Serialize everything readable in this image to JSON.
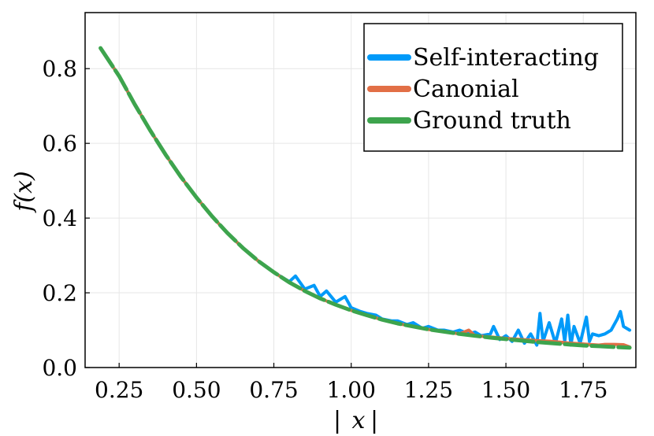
{
  "chart_data": {
    "type": "line",
    "title": "",
    "xlabel": "|x|",
    "ylabel": "f(x)",
    "xlim": [
      0.14,
      1.92
    ],
    "ylim": [
      0.0,
      0.95
    ],
    "xticks": [
      0.25,
      0.5,
      0.75,
      1.0,
      1.25,
      1.5,
      1.75
    ],
    "xtick_labels": [
      "0.25",
      "0.50",
      "0.75",
      "1.00",
      "1.25",
      "1.50",
      "1.75"
    ],
    "yticks": [
      0.0,
      0.2,
      0.4,
      0.6,
      0.8
    ],
    "ytick_labels": [
      "0.0",
      "0.2",
      "0.4",
      "0.6",
      "0.8"
    ],
    "grid": true,
    "legend_position": "top-right",
    "series": [
      {
        "name": "Self-interacting",
        "color": "#009af9",
        "x": [
          0.19,
          0.25,
          0.3,
          0.35,
          0.4,
          0.45,
          0.5,
          0.55,
          0.6,
          0.65,
          0.7,
          0.75,
          0.8,
          0.82,
          0.85,
          0.88,
          0.9,
          0.92,
          0.95,
          0.98,
          1.0,
          1.03,
          1.05,
          1.08,
          1.1,
          1.13,
          1.15,
          1.18,
          1.2,
          1.23,
          1.25,
          1.28,
          1.3,
          1.33,
          1.35,
          1.38,
          1.4,
          1.42,
          1.45,
          1.46,
          1.48,
          1.5,
          1.52,
          1.54,
          1.56,
          1.58,
          1.6,
          1.61,
          1.62,
          1.64,
          1.66,
          1.68,
          1.69,
          1.7,
          1.71,
          1.72,
          1.74,
          1.76,
          1.77,
          1.78,
          1.8,
          1.82,
          1.84,
          1.86,
          1.87,
          1.88,
          1.9
        ],
        "y": [
          0.855,
          0.78,
          0.705,
          0.635,
          0.57,
          0.51,
          0.455,
          0.405,
          0.36,
          0.32,
          0.285,
          0.255,
          0.23,
          0.245,
          0.21,
          0.22,
          0.19,
          0.205,
          0.175,
          0.19,
          0.16,
          0.15,
          0.145,
          0.14,
          0.13,
          0.125,
          0.125,
          0.115,
          0.12,
          0.105,
          0.11,
          0.1,
          0.1,
          0.095,
          0.1,
          0.09,
          0.095,
          0.085,
          0.09,
          0.11,
          0.075,
          0.085,
          0.07,
          0.1,
          0.065,
          0.09,
          0.06,
          0.145,
          0.07,
          0.12,
          0.065,
          0.13,
          0.07,
          0.14,
          0.06,
          0.11,
          0.065,
          0.135,
          0.07,
          0.09,
          0.085,
          0.09,
          0.1,
          0.13,
          0.15,
          0.11,
          0.1
        ]
      },
      {
        "name": "Canonial",
        "color": "#e26f46",
        "x": [
          0.19,
          0.25,
          0.3,
          0.35,
          0.4,
          0.45,
          0.5,
          0.55,
          0.6,
          0.65,
          0.7,
          0.75,
          0.8,
          0.85,
          0.9,
          0.95,
          1.0,
          1.05,
          1.1,
          1.15,
          1.2,
          1.25,
          1.3,
          1.35,
          1.38,
          1.4,
          1.45,
          1.5,
          1.55,
          1.6,
          1.65,
          1.7,
          1.75,
          1.8,
          1.82,
          1.85,
          1.88,
          1.9
        ],
        "y": [
          0.855,
          0.78,
          0.705,
          0.635,
          0.57,
          0.51,
          0.455,
          0.405,
          0.36,
          0.32,
          0.285,
          0.255,
          0.228,
          0.205,
          0.185,
          0.168,
          0.153,
          0.14,
          0.128,
          0.118,
          0.11,
          0.102,
          0.096,
          0.09,
          0.1,
          0.085,
          0.082,
          0.078,
          0.075,
          0.072,
          0.07,
          0.066,
          0.063,
          0.06,
          0.062,
          0.062,
          0.061,
          0.055
        ]
      },
      {
        "name": "Ground truth",
        "color": "#3da44d",
        "x": [
          0.19,
          0.25,
          0.3,
          0.35,
          0.4,
          0.45,
          0.5,
          0.55,
          0.6,
          0.65,
          0.7,
          0.75,
          0.8,
          0.85,
          0.9,
          0.95,
          1.0,
          1.05,
          1.1,
          1.15,
          1.2,
          1.25,
          1.3,
          1.35,
          1.4,
          1.45,
          1.5,
          1.55,
          1.6,
          1.65,
          1.7,
          1.75,
          1.8,
          1.85,
          1.9
        ],
        "y": [
          0.855,
          0.78,
          0.705,
          0.635,
          0.57,
          0.51,
          0.455,
          0.405,
          0.36,
          0.32,
          0.285,
          0.255,
          0.228,
          0.205,
          0.185,
          0.168,
          0.153,
          0.14,
          0.128,
          0.118,
          0.11,
          0.102,
          0.096,
          0.09,
          0.085,
          0.08,
          0.076,
          0.072,
          0.068,
          0.065,
          0.062,
          0.059,
          0.057,
          0.055,
          0.053
        ]
      }
    ]
  }
}
